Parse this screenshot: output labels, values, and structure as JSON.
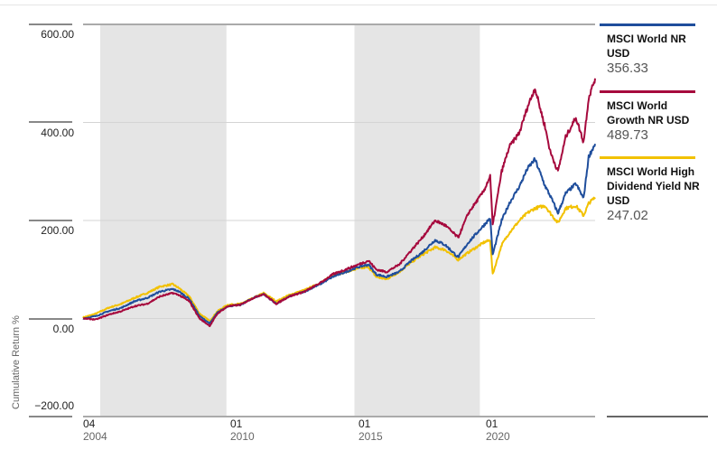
{
  "chart_data": {
    "type": "line",
    "title": "",
    "xlabel": "",
    "ylabel": "Cumulative Return %",
    "ylim": [
      -200,
      600
    ],
    "yticks": [
      "600.00",
      "400.00",
      "200.00",
      "0.00",
      "−200.00"
    ],
    "ytick_values": [
      600,
      400,
      200,
      0,
      -200
    ],
    "xticks": [
      {
        "month": "04",
        "year": "2004",
        "t": 2004.25
      },
      {
        "month": "01",
        "year": "2010",
        "t": 2010.0
      },
      {
        "month": "01",
        "year": "2015",
        "t": 2015.0
      },
      {
        "month": "01",
        "year": "2020",
        "t": 2020.0
      }
    ],
    "xlim": [
      2004.25,
      2024.25
    ],
    "shaded_bands": [
      [
        2004.92,
        2009.85
      ],
      [
        2014.85,
        2019.75
      ]
    ],
    "grid": true,
    "legend_position": "right",
    "series": [
      {
        "name": "MSCI World NR USD",
        "color": "#1f4e9c",
        "last_value": "356.33",
        "x": [
          2004.25,
          2004.75,
          2005.25,
          2005.75,
          2006.25,
          2006.75,
          2007.25,
          2007.75,
          2008.0,
          2008.4,
          2008.8,
          2009.2,
          2009.5,
          2009.9,
          2010.4,
          2010.9,
          2011.3,
          2011.8,
          2012.3,
          2012.9,
          2013.5,
          2014.0,
          2014.5,
          2015.0,
          2015.4,
          2015.7,
          2016.1,
          2016.6,
          2017.0,
          2017.5,
          2018.0,
          2018.4,
          2018.9,
          2019.3,
          2019.9,
          2020.15,
          2020.25,
          2020.6,
          2020.9,
          2021.3,
          2021.6,
          2021.9,
          2022.3,
          2022.5,
          2022.8,
          2023.1,
          2023.5,
          2023.8,
          2024.0,
          2024.25
        ],
        "values": [
          0,
          5,
          15,
          22,
          35,
          42,
          55,
          60,
          55,
          40,
          5,
          -10,
          12,
          25,
          28,
          42,
          50,
          30,
          45,
          55,
          70,
          85,
          95,
          105,
          110,
          90,
          85,
          95,
          115,
          135,
          160,
          150,
          125,
          155,
          190,
          205,
          130,
          200,
          235,
          270,
          305,
          325,
          270,
          250,
          215,
          255,
          275,
          245,
          330,
          356.33
        ]
      },
      {
        "name": "MSCI World Growth NR USD",
        "color": "#a6093d",
        "last_value": "489.73",
        "x": [
          2004.25,
          2004.75,
          2005.25,
          2005.75,
          2006.25,
          2006.75,
          2007.25,
          2007.75,
          2008.0,
          2008.4,
          2008.8,
          2009.2,
          2009.5,
          2009.9,
          2010.4,
          2010.9,
          2011.3,
          2011.8,
          2012.3,
          2012.9,
          2013.5,
          2014.0,
          2014.5,
          2015.0,
          2015.4,
          2015.7,
          2016.1,
          2016.6,
          2017.0,
          2017.5,
          2018.0,
          2018.4,
          2018.9,
          2019.3,
          2019.9,
          2020.15,
          2020.25,
          2020.6,
          2020.9,
          2021.3,
          2021.6,
          2021.9,
          2022.3,
          2022.5,
          2022.8,
          2023.1,
          2023.5,
          2023.8,
          2024.0,
          2024.25
        ],
        "values": [
          0,
          -2,
          8,
          15,
          25,
          30,
          45,
          52,
          48,
          35,
          0,
          -15,
          10,
          25,
          28,
          42,
          50,
          30,
          45,
          55,
          72,
          90,
          100,
          110,
          118,
          100,
          95,
          110,
          135,
          165,
          200,
          190,
          165,
          215,
          260,
          290,
          190,
          300,
          350,
          380,
          430,
          470,
          390,
          340,
          300,
          370,
          410,
          360,
          450,
          489.73
        ]
      },
      {
        "name": "MSCI World High Dividend Yield NR USD",
        "color": "#f2c100",
        "last_value": "247.02",
        "x": [
          2004.25,
          2004.75,
          2005.25,
          2005.75,
          2006.25,
          2006.75,
          2007.25,
          2007.75,
          2008.0,
          2008.4,
          2008.8,
          2009.2,
          2009.5,
          2009.9,
          2010.4,
          2010.9,
          2011.3,
          2011.8,
          2012.3,
          2012.9,
          2013.5,
          2014.0,
          2014.5,
          2015.0,
          2015.4,
          2015.7,
          2016.1,
          2016.6,
          2017.0,
          2017.5,
          2018.0,
          2018.4,
          2018.9,
          2019.3,
          2019.9,
          2020.15,
          2020.25,
          2020.6,
          2020.9,
          2021.3,
          2021.6,
          2021.9,
          2022.3,
          2022.5,
          2022.8,
          2023.1,
          2023.5,
          2023.8,
          2024.0,
          2024.25
        ],
        "values": [
          2,
          10,
          22,
          30,
          42,
          52,
          65,
          70,
          62,
          45,
          10,
          -5,
          15,
          28,
          30,
          42,
          52,
          35,
          48,
          58,
          72,
          88,
          95,
          102,
          105,
          85,
          80,
          95,
          112,
          130,
          145,
          140,
          120,
          135,
          155,
          160,
          90,
          150,
          175,
          200,
          215,
          225,
          230,
          215,
          195,
          225,
          230,
          210,
          235,
          247.02
        ]
      }
    ]
  }
}
